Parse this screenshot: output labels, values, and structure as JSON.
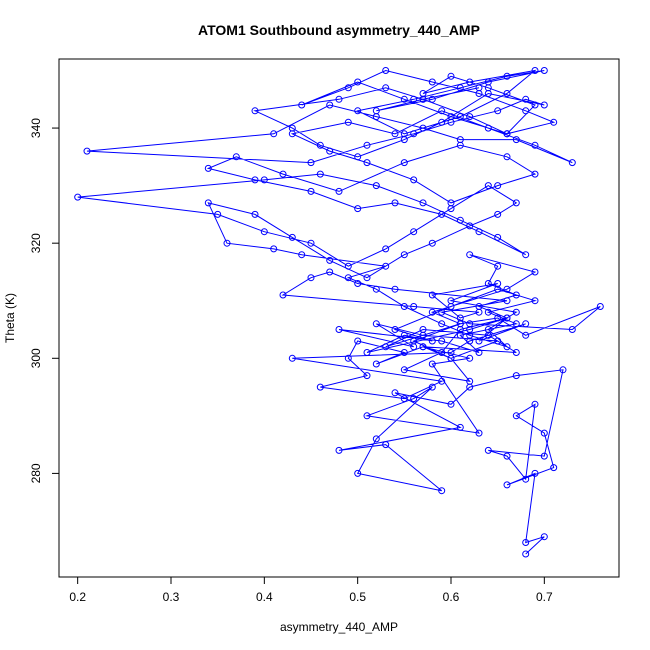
{
  "chart_data": {
    "type": "scatter",
    "title": "ATOM1 Southbound asymmetry_440_AMP",
    "xlabel": "asymmetry_440_AMP",
    "ylabel": "Theta (K)",
    "xlim": [
      0.18,
      0.78
    ],
    "ylim": [
      262,
      352
    ],
    "x_ticks": [
      0.2,
      0.3,
      0.4,
      0.5,
      0.6,
      0.7
    ],
    "x_tick_labels": [
      "0.2",
      "0.3",
      "0.4",
      "0.5",
      "0.6",
      "0.7"
    ],
    "y_ticks": [
      280,
      300,
      320,
      340
    ],
    "y_tick_labels": [
      "280",
      "300",
      "320",
      "340"
    ],
    "grid": false,
    "legend": "none",
    "series_color": "#0000ff",
    "marker": "open-circle",
    "connected": true,
    "series": [
      {
        "x": [
          0.68,
          0.7,
          0.68,
          0.69,
          0.66,
          0.71,
          0.7,
          0.67,
          0.69,
          0.68,
          0.66,
          0.64,
          0.7,
          0.72,
          0.67,
          0.62,
          0.6,
          0.54,
          0.61,
          0.48,
          0.53,
          0.59,
          0.5,
          0.52,
          0.58,
          0.56,
          0.51,
          0.63,
          0.58,
          0.62,
          0.57,
          0.67,
          0.64,
          0.68,
          0.63,
          0.66,
          0.61,
          0.59,
          0.55,
          0.62,
          0.6,
          0.65,
          0.57,
          0.52,
          0.56,
          0.48,
          0.59,
          0.63,
          0.61,
          0.67,
          0.64,
          0.69,
          0.65,
          0.6,
          0.54,
          0.58,
          0.55,
          0.51,
          0.62,
          0.66,
          0.63,
          0.67,
          0.64,
          0.65,
          0.62,
          0.69,
          0.66,
          0.58,
          0.61,
          0.56,
          0.6,
          0.57,
          0.52,
          0.55,
          0.5,
          0.49,
          0.51,
          0.46,
          0.55,
          0.59,
          0.43,
          0.6,
          0.62,
          0.64,
          0.57,
          0.53,
          0.61,
          0.65,
          0.68,
          0.76,
          0.73,
          0.62,
          0.59,
          0.66,
          0.54,
          0.5,
          0.47,
          0.45,
          0.42,
          0.56,
          0.63,
          0.61,
          0.58,
          0.65,
          0.6,
          0.67,
          0.64,
          0.66,
          0.62,
          0.59,
          0.55,
          0.52,
          0.49,
          0.53,
          0.44,
          0.41,
          0.36,
          0.34,
          0.39,
          0.43,
          0.47,
          0.51,
          0.55,
          0.58,
          0.62,
          0.65,
          0.67,
          0.64,
          0.6,
          0.56,
          0.53,
          0.49,
          0.45,
          0.4,
          0.35,
          0.2,
          0.4,
          0.46,
          0.52,
          0.57,
          0.61,
          0.65,
          0.68,
          0.63,
          0.59,
          0.54,
          0.5,
          0.45,
          0.39,
          0.34,
          0.37,
          0.42,
          0.48,
          0.55,
          0.61,
          0.66,
          0.69,
          0.65,
          0.6,
          0.56,
          0.51,
          0.47,
          0.43,
          0.49,
          0.54,
          0.59,
          0.64,
          0.69,
          0.73,
          0.67,
          0.61,
          0.57,
          0.52,
          0.47,
          0.41,
          0.21,
          0.45,
          0.51,
          0.56,
          0.6,
          0.65,
          0.68,
          0.7,
          0.64,
          0.59,
          0.55,
          0.5,
          0.46,
          0.43,
          0.39,
          0.48,
          0.53,
          0.57,
          0.62,
          0.66,
          0.71,
          0.68,
          0.63,
          0.58,
          0.53,
          0.49,
          0.44,
          0.5,
          0.55,
          0.6,
          0.66,
          0.69,
          0.64,
          0.6,
          0.57,
          0.62,
          0.69,
          0.66,
          0.61,
          0.55,
          0.5,
          0.56,
          0.61,
          0.66,
          0.7,
          0.64,
          0.58,
          0.52,
          0.57,
          0.63
        ],
        "y": [
          266,
          269,
          268,
          280,
          278,
          281,
          287,
          290,
          292,
          279,
          283,
          284,
          283,
          298,
          297,
          295,
          292,
          294,
          288,
          284,
          285,
          277,
          280,
          286,
          295,
          293,
          290,
          287,
          299,
          300,
          302,
          301,
          304,
          306,
          303,
          307,
          305,
          301,
          298,
          296,
          300,
          303,
          304,
          306,
          302,
          305,
          303,
          301,
          304,
          306,
          308,
          310,
          312,
          309,
          305,
          303,
          304,
          301,
          305,
          307,
          309,
          311,
          313,
          316,
          318,
          315,
          312,
          308,
          306,
          303,
          300,
          302,
          299,
          301,
          303,
          300,
          297,
          295,
          293,
          296,
          300,
          301,
          303,
          304,
          305,
          302,
          306,
          307,
          304,
          309,
          305,
          306,
          308,
          310,
          312,
          313,
          315,
          314,
          311,
          309,
          308,
          307,
          311,
          313,
          310,
          308,
          305,
          302,
          304,
          306,
          309,
          312,
          314,
          316,
          318,
          319,
          320,
          327,
          325,
          321,
          317,
          314,
          318,
          320,
          323,
          325,
          327,
          330,
          326,
          322,
          319,
          316,
          320,
          322,
          325,
          328,
          331,
          332,
          330,
          327,
          324,
          321,
          318,
          322,
          325,
          327,
          326,
          329,
          331,
          333,
          335,
          332,
          329,
          334,
          337,
          335,
          332,
          330,
          327,
          331,
          334,
          336,
          339,
          341,
          339,
          343,
          340,
          337,
          334,
          338,
          338,
          340,
          342,
          344,
          339,
          336,
          334,
          337,
          339,
          341,
          343,
          345,
          344,
          346,
          341,
          338,
          335,
          337,
          340,
          343,
          345,
          347,
          345,
          342,
          339,
          341,
          343,
          346,
          348,
          350,
          347,
          344,
          348,
          345,
          342,
          339,
          344,
          347,
          349,
          346,
          348,
          350,
          346,
          342,
          339,
          343,
          345,
          347,
          349,
          350,
          348,
          345,
          343,
          345,
          347
        ]
      }
    ]
  }
}
